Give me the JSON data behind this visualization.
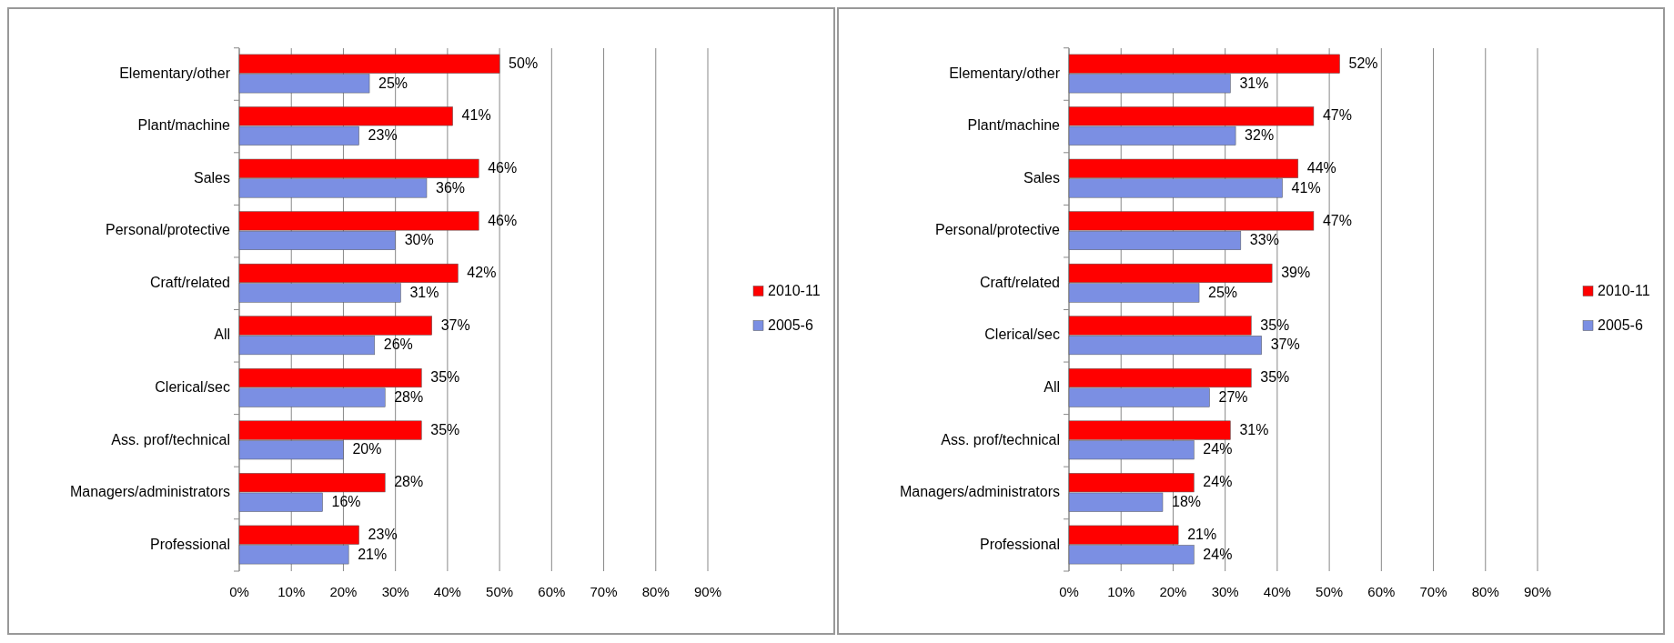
{
  "chart_data": [
    {
      "type": "bar",
      "orientation": "horizontal",
      "categories": [
        "Elementary/other",
        "Plant/machine",
        "Sales",
        "Personal/protective",
        "Craft/related",
        "All",
        "Clerical/sec",
        "Ass. prof/technical",
        "Managers/administrators",
        "Professional"
      ],
      "series": [
        {
          "name": "2010-11",
          "color": "#ff0000",
          "values": [
            50,
            41,
            46,
            46,
            42,
            37,
            35,
            35,
            28,
            23
          ],
          "value_labels": [
            "50%",
            "41%",
            "46%",
            "46%",
            "42%",
            "37%",
            "35%",
            "35%",
            "28%",
            "23%"
          ]
        },
        {
          "name": "2005-6",
          "color": "#7b8fe3",
          "values": [
            25,
            23,
            36,
            30,
            31,
            26,
            28,
            20,
            16,
            21
          ],
          "value_labels": [
            "25%",
            "23%",
            "36%",
            "30%",
            "31%",
            "26%",
            "28%",
            "20%",
            "16%",
            "21%"
          ]
        }
      ],
      "xlim": [
        0,
        90
      ],
      "xticks": [
        {
          "value": 0,
          "label": "0%"
        },
        {
          "value": 10,
          "label": "10%"
        },
        {
          "value": 20,
          "label": "20%"
        },
        {
          "value": 30,
          "label": "30%"
        },
        {
          "value": 40,
          "label": "40%"
        },
        {
          "value": 50,
          "label": "50%"
        },
        {
          "value": 60,
          "label": "60%"
        },
        {
          "value": 70,
          "label": "70%"
        },
        {
          "value": 80,
          "label": "80%"
        },
        {
          "value": 90,
          "label": "90%"
        }
      ],
      "grid": "x",
      "legend": "right"
    },
    {
      "type": "bar",
      "orientation": "horizontal",
      "categories": [
        "Elementary/other",
        "Plant/machine",
        "Sales",
        "Personal/protective",
        "Craft/related",
        "Clerical/sec",
        "All",
        "Ass. prof/technical",
        "Managers/administrators",
        "Professional"
      ],
      "series": [
        {
          "name": "2010-11",
          "color": "#ff0000",
          "values": [
            52,
            47,
            44,
            47,
            39,
            35,
            35,
            31,
            24,
            21
          ],
          "value_labels": [
            "52%",
            "47%",
            "44%",
            "47%",
            "39%",
            "35%",
            "35%",
            "31%",
            "24%",
            "21%"
          ]
        },
        {
          "name": "2005-6",
          "color": "#7b8fe3",
          "values": [
            31,
            32,
            41,
            33,
            25,
            37,
            27,
            24,
            18,
            24
          ],
          "value_labels": [
            "31%",
            "32%",
            "41%",
            "33%",
            "25%",
            "37%",
            "27%",
            "24%",
            "18%",
            "24%"
          ]
        }
      ],
      "xlim": [
        0,
        90
      ],
      "xticks": [
        {
          "value": 0,
          "label": "0%"
        },
        {
          "value": 10,
          "label": "10%"
        },
        {
          "value": 20,
          "label": "20%"
        },
        {
          "value": 30,
          "label": "30%"
        },
        {
          "value": 40,
          "label": "40%"
        },
        {
          "value": 50,
          "label": "50%"
        },
        {
          "value": 60,
          "label": "60%"
        },
        {
          "value": 70,
          "label": "70%"
        },
        {
          "value": 80,
          "label": "80%"
        },
        {
          "value": 90,
          "label": "90%"
        }
      ],
      "grid": "x",
      "legend": "right"
    }
  ]
}
